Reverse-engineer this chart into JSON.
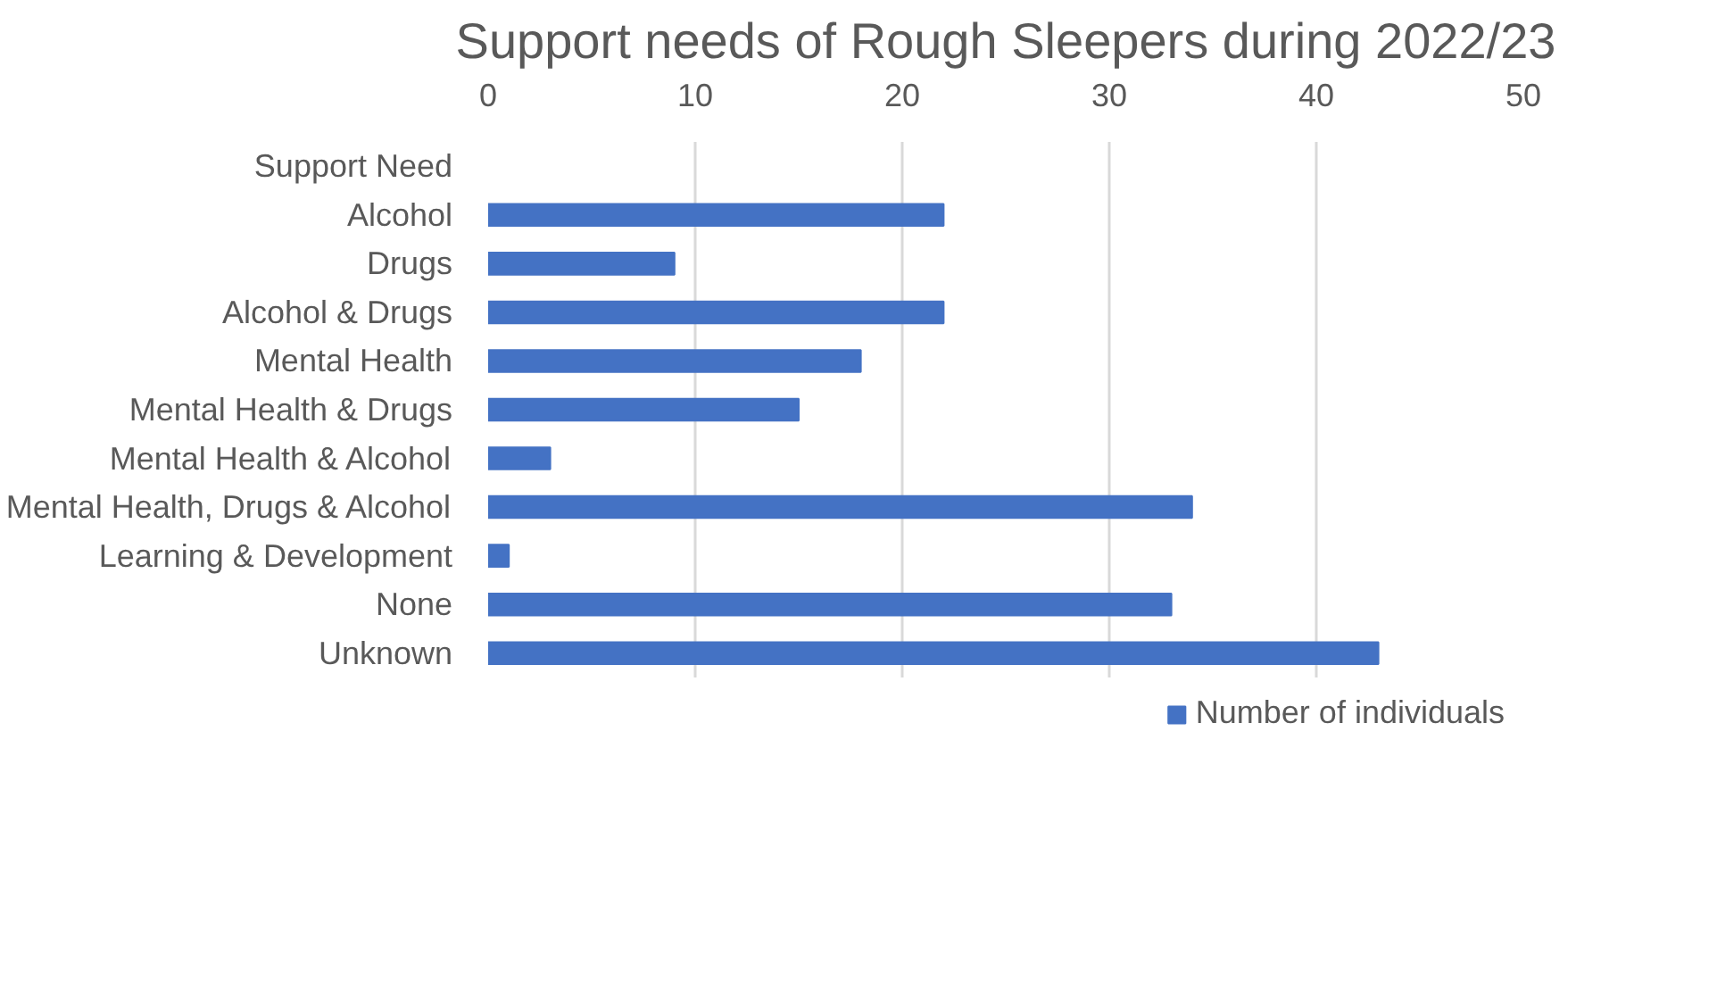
{
  "chart_data": {
    "type": "bar",
    "orientation": "horizontal",
    "title": "Support needs of Rough Sleepers during 2022/23",
    "categories": [
      "Support Need",
      "Alcohol",
      "Drugs",
      "Alcohol & Drugs",
      "Mental Health",
      "Mental Health & Drugs",
      "Mental Health & Alcohol",
      "Mental Health, Drugs & Alcohol",
      "Learning & Development",
      "None",
      "Unknown"
    ],
    "series": [
      {
        "name": "Number of individuals",
        "color": "#4472c4",
        "values": [
          null,
          22,
          9,
          22,
          18,
          15,
          3,
          34,
          1,
          33,
          43
        ]
      }
    ],
    "xlim": [
      0,
      50
    ],
    "xticks": [
      0,
      10,
      20,
      30,
      40,
      50
    ],
    "grid": "x",
    "legend": "bottom"
  }
}
